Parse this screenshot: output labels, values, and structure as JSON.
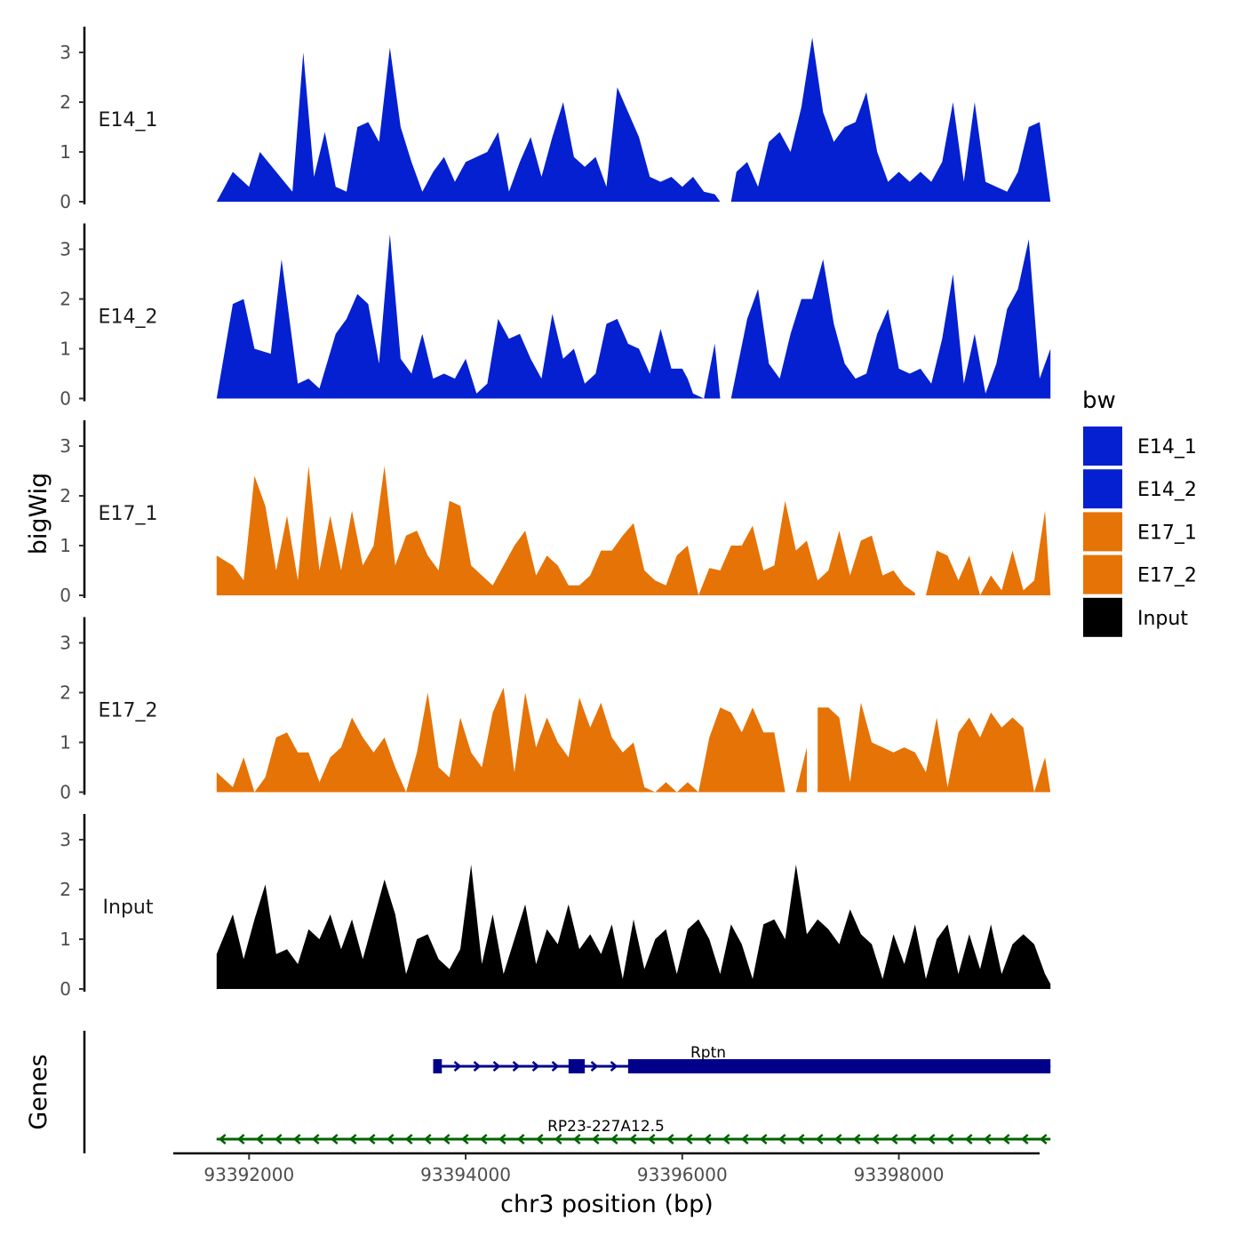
{
  "chart_data": {
    "type": "area",
    "chromosome": "chr3",
    "xlabel": "chr3 position (bp)",
    "ylabel": "bigWig",
    "genes_label": "Genes",
    "xlim": [
      93391300,
      93399300
    ],
    "xticks": [
      93392000,
      93394000,
      93396000,
      93398000
    ],
    "xtick_labels": [
      "93392000",
      "93394000",
      "93396000",
      "93398000"
    ],
    "ylim": [
      0,
      3.5
    ],
    "yticks": [
      0,
      1,
      2,
      3
    ],
    "ytick_labels": [
      "0",
      "1",
      "2",
      "3"
    ],
    "legend": {
      "title": "bw",
      "position": "right",
      "entries": [
        {
          "label": "E14_1",
          "color": "#0420D0"
        },
        {
          "label": "E14_2",
          "color": "#0420D0"
        },
        {
          "label": "E17_1",
          "color": "#E67306"
        },
        {
          "label": "E17_2",
          "color": "#E67306"
        },
        {
          "label": "Input",
          "color": "#000000"
        }
      ]
    },
    "series": [
      {
        "name": "E14_1",
        "color": "#0420D0",
        "x": [
          93391700,
          93391850,
          93392000,
          93392100,
          93392250,
          93392400,
          93392500,
          93392600,
          93392700,
          93392800,
          93392900,
          93393000,
          93393100,
          93393200,
          93393300,
          93393400,
          93393500,
          93393600,
          93393700,
          93393800,
          93393900,
          93394000,
          93394100,
          93394200,
          93394300,
          93394400,
          93394500,
          93394600,
          93394700,
          93394800,
          93394900,
          93395000,
          93395100,
          93395200,
          93395300,
          93395400,
          93395500,
          93395600,
          93395700,
          93395800,
          93395900,
          93396000,
          93396100,
          93396200,
          93396300,
          93396350,
          93396450,
          93396500,
          93396600,
          93396700,
          93396800,
          93396900,
          93397000,
          93397100,
          93397200,
          93397300,
          93397400,
          93397500,
          93397600,
          93397700,
          93397800,
          93397900,
          93398000,
          93398100,
          93398200,
          93398300,
          93398400,
          93398500,
          93398600,
          93398700,
          93398800,
          93398900,
          93399000,
          93399100,
          93399200,
          93399300,
          93399400
        ],
        "y": [
          0,
          0.6,
          0.3,
          1.0,
          0.6,
          0.2,
          3.0,
          0.5,
          1.4,
          0.3,
          0.2,
          1.5,
          1.6,
          1.2,
          3.1,
          1.5,
          0.8,
          0.2,
          0.6,
          0.9,
          0.4,
          0.8,
          0.9,
          1.0,
          1.4,
          0.2,
          0.8,
          1.3,
          0.5,
          1.3,
          2.0,
          0.9,
          0.7,
          0.9,
          0.3,
          2.3,
          1.8,
          1.3,
          0.5,
          0.4,
          0.5,
          0.3,
          0.5,
          0.2,
          0.15,
          0,
          0,
          0.6,
          0.8,
          0.3,
          1.2,
          1.4,
          1.0,
          1.9,
          3.3,
          1.8,
          1.2,
          1.5,
          1.6,
          2.2,
          1.0,
          0.4,
          0.6,
          0.4,
          0.6,
          0.4,
          0.8,
          2.0,
          0.4,
          2.0,
          0.4,
          0.3,
          0.2,
          0.6,
          1.5,
          1.6,
          0
        ],
        "gap": [
          93396350,
          93396450
        ]
      },
      {
        "name": "E14_2",
        "color": "#0420D0",
        "x": [
          93391700,
          93391850,
          93391950,
          93392050,
          93392200,
          93392300,
          93392450,
          93392550,
          93392650,
          93392800,
          93392900,
          93393000,
          93393100,
          93393200,
          93393300,
          93393400,
          93393500,
          93393600,
          93393700,
          93393800,
          93393900,
          93394000,
          93394100,
          93394200,
          93394300,
          93394400,
          93394500,
          93394600,
          93394700,
          93394800,
          93394900,
          93395000,
          93395100,
          93395200,
          93395300,
          93395400,
          93395500,
          93395600,
          93395700,
          93395800,
          93395900,
          93396000,
          93396050,
          93396100,
          93396200,
          93396300,
          93396350,
          93396450,
          93396600,
          93396700,
          93396800,
          93396900,
          93397000,
          93397100,
          93397200,
          93397300,
          93397400,
          93397500,
          93397600,
          93397700,
          93397800,
          93397900,
          93398000,
          93398100,
          93398200,
          93398300,
          93398400,
          93398500,
          93398600,
          93398700,
          93398800,
          93398900,
          93399000,
          93399100,
          93399200,
          93399300,
          93399400
        ],
        "y": [
          0,
          1.9,
          2.0,
          1.0,
          0.9,
          2.8,
          0.3,
          0.4,
          0.2,
          1.3,
          1.6,
          2.1,
          1.9,
          0.7,
          3.3,
          0.8,
          0.5,
          1.3,
          0.4,
          0.5,
          0.4,
          0.8,
          0.1,
          0.3,
          1.6,
          1.2,
          1.3,
          0.8,
          0.4,
          1.7,
          0.8,
          1.0,
          0.3,
          0.5,
          1.5,
          1.6,
          1.1,
          1.0,
          0.5,
          1.4,
          0.6,
          0.6,
          0.4,
          0.1,
          0,
          1.1,
          0,
          0,
          1.6,
          2.2,
          0.7,
          0.4,
          1.3,
          2.0,
          2.0,
          2.8,
          1.5,
          0.7,
          0.4,
          0.5,
          1.3,
          1.8,
          0.6,
          0.5,
          0.6,
          0.3,
          1.2,
          2.5,
          0.3,
          1.3,
          0.1,
          0.7,
          1.8,
          2.2,
          3.2,
          0.4,
          1.0
        ],
        "gap": [
          93396350,
          93396450
        ]
      },
      {
        "name": "E17_1",
        "color": "#E67306",
        "x": [
          93391700,
          93391850,
          93391950,
          93392050,
          93392150,
          93392250,
          93392350,
          93392450,
          93392550,
          93392650,
          93392750,
          93392850,
          93392950,
          93393050,
          93393150,
          93393250,
          93393350,
          93393450,
          93393550,
          93393650,
          93393750,
          93393850,
          93393950,
          93394050,
          93394150,
          93394250,
          93394350,
          93394450,
          93394550,
          93394650,
          93394750,
          93394850,
          93394950,
          93395050,
          93395150,
          93395250,
          93395350,
          93395450,
          93395550,
          93395650,
          93395750,
          93395850,
          93395950,
          93396050,
          93396150,
          93396250,
          93396350,
          93396450,
          93396550,
          93396650,
          93396750,
          93396850,
          93396950,
          93397050,
          93397150,
          93397250,
          93397350,
          93397450,
          93397550,
          93397650,
          93397750,
          93397850,
          93397950,
          93398050,
          93398150,
          93398250,
          93398350,
          93398450,
          93398550,
          93398650,
          93398750,
          93398850,
          93398950,
          93399050,
          93399150,
          93399250,
          93399350,
          93399400
        ],
        "y": [
          0.8,
          0.6,
          0.3,
          2.4,
          1.8,
          0.5,
          1.6,
          0.3,
          2.6,
          0.5,
          1.6,
          0.5,
          1.7,
          0.6,
          1.0,
          2.6,
          0.6,
          1.2,
          1.3,
          0.8,
          0.5,
          1.9,
          1.8,
          0.6,
          0.4,
          0.2,
          0.6,
          1.0,
          1.3,
          0.4,
          0.8,
          0.6,
          0.2,
          0.2,
          0.4,
          0.9,
          0.9,
          1.2,
          1.45,
          0.5,
          0.3,
          0.2,
          0.8,
          1.0,
          0.0,
          0.55,
          0.5,
          1.0,
          1.0,
          1.4,
          0.5,
          0.6,
          1.9,
          0.9,
          1.1,
          0.3,
          0.5,
          1.3,
          0.4,
          1.1,
          1.2,
          0.4,
          0.5,
          0.2,
          0.05,
          0.0,
          0.9,
          0.8,
          0.3,
          0.8,
          0.0,
          0.4,
          0.1,
          0.9,
          0.1,
          0.3,
          1.7,
          0.0
        ],
        "gap": [
          93398150,
          93398250
        ]
      },
      {
        "name": "E17_2",
        "color": "#E67306",
        "x": [
          93391700,
          93391850,
          93391950,
          93392050,
          93392150,
          93392250,
          93392350,
          93392450,
          93392550,
          93392650,
          93392750,
          93392850,
          93392950,
          93393050,
          93393150,
          93393250,
          93393350,
          93393450,
          93393550,
          93393650,
          93393750,
          93393850,
          93393950,
          93394050,
          93394150,
          93394250,
          93394350,
          93394450,
          93394550,
          93394650,
          93394750,
          93394850,
          93394950,
          93395050,
          93395150,
          93395250,
          93395350,
          93395450,
          93395550,
          93395650,
          93395750,
          93395850,
          93395950,
          93396050,
          93396150,
          93396250,
          93396350,
          93396450,
          93396550,
          93396650,
          93396750,
          93396850,
          93396950,
          93397050,
          93397150,
          93397250,
          93397350,
          93397450,
          93397550,
          93397650,
          93397750,
          93397850,
          93397950,
          93398050,
          93398150,
          93398250,
          93398350,
          93398450,
          93398550,
          93398650,
          93398750,
          93398850,
          93398950,
          93399050,
          93399150,
          93399250,
          93399350,
          93399400
        ],
        "y": [
          0.4,
          0.1,
          0.7,
          0.0,
          0.3,
          1.1,
          1.2,
          0.8,
          0.8,
          0.2,
          0.7,
          0.9,
          1.5,
          1.1,
          0.8,
          1.1,
          0.5,
          0.0,
          0.8,
          2.0,
          0.5,
          0.3,
          1.5,
          0.8,
          0.5,
          1.6,
          2.1,
          0.4,
          2.0,
          0.9,
          1.5,
          1.0,
          0.7,
          1.9,
          1.3,
          1.8,
          1.1,
          0.8,
          1.0,
          0.1,
          0.0,
          0.2,
          0.0,
          0.2,
          0.0,
          1.1,
          1.7,
          1.6,
          1.2,
          1.7,
          1.2,
          1.2,
          0.0,
          0.0,
          0.9,
          1.7,
          1.7,
          1.5,
          0.2,
          1.8,
          1.0,
          0.9,
          0.8,
          0.9,
          0.8,
          0.4,
          1.5,
          0.1,
          1.2,
          1.5,
          1.1,
          1.6,
          1.3,
          1.5,
          1.3,
          0.0,
          0.7,
          0.0
        ],
        "gap": [
          93397150,
          93397250
        ]
      },
      {
        "name": "Input",
        "color": "#000000",
        "x": [
          93391700,
          93391850,
          93391950,
          93392050,
          93392150,
          93392250,
          93392350,
          93392450,
          93392550,
          93392650,
          93392750,
          93392850,
          93392950,
          93393050,
          93393150,
          93393250,
          93393350,
          93393450,
          93393550,
          93393650,
          93393750,
          93393850,
          93393950,
          93394050,
          93394150,
          93394250,
          93394350,
          93394450,
          93394550,
          93394650,
          93394750,
          93394850,
          93394950,
          93395050,
          93395150,
          93395250,
          93395350,
          93395450,
          93395550,
          93395650,
          93395750,
          93395850,
          93395950,
          93396050,
          93396150,
          93396250,
          93396350,
          93396450,
          93396550,
          93396650,
          93396750,
          93396850,
          93396950,
          93397050,
          93397150,
          93397250,
          93397350,
          93397450,
          93397550,
          93397650,
          93397750,
          93397850,
          93397950,
          93398050,
          93398150,
          93398250,
          93398350,
          93398450,
          93398550,
          93398650,
          93398750,
          93398850,
          93398950,
          93399050,
          93399150,
          93399250,
          93399350,
          93399400
        ],
        "y": [
          0.7,
          1.5,
          0.6,
          1.4,
          2.1,
          0.7,
          0.8,
          0.5,
          1.2,
          1.0,
          1.5,
          0.8,
          1.4,
          0.6,
          1.4,
          2.2,
          1.5,
          0.3,
          1.0,
          1.1,
          0.6,
          0.4,
          0.8,
          2.5,
          0.5,
          1.5,
          0.3,
          1.0,
          1.7,
          0.5,
          1.2,
          0.9,
          1.7,
          0.8,
          1.1,
          0.7,
          1.3,
          0.2,
          1.4,
          0.4,
          1.0,
          1.2,
          0.3,
          1.2,
          1.4,
          1.0,
          0.3,
          1.3,
          0.9,
          0.2,
          1.3,
          1.4,
          1.0,
          2.5,
          1.1,
          1.4,
          1.2,
          0.9,
          1.6,
          1.1,
          0.9,
          0.2,
          1.1,
          0.5,
          1.3,
          0.2,
          1.0,
          1.3,
          0.3,
          1.1,
          0.4,
          1.3,
          0.3,
          0.9,
          1.1,
          0.9,
          0.3,
          0.1
        ]
      }
    ],
    "genes": [
      {
        "name": "Rptn",
        "color": "#00008B",
        "strand": "+",
        "start": 93393700,
        "end": 93399400,
        "exons": [
          [
            93393700,
            93393780
          ],
          [
            93394950,
            93395100
          ],
          [
            93395500,
            93399400
          ]
        ]
      },
      {
        "name": "RP23-227A12.5",
        "color": "#006400",
        "strand": "-",
        "start": 93391700,
        "end": 93399400,
        "exons": []
      }
    ]
  }
}
